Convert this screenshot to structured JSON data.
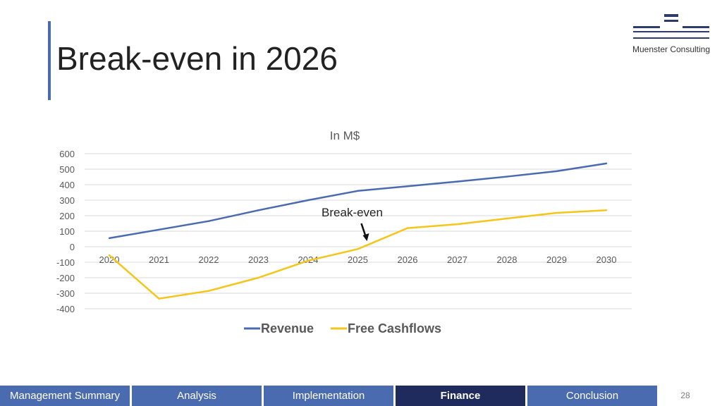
{
  "slide": {
    "title": "Break-even in 2026",
    "logo_text": "Muenster Consulting",
    "page_number": "28"
  },
  "colors": {
    "accent": "#4a6bb0",
    "revenue": "#4a6bb0",
    "cashflow": "#f5c518",
    "nav": "#4a6bb0",
    "nav_active": "#1f2b5c"
  },
  "chart_data": {
    "type": "line",
    "title": "In M$",
    "x": [
      "2020",
      "2021",
      "2022",
      "2023",
      "2024",
      "2025",
      "2026",
      "2027",
      "2028",
      "2029",
      "2030"
    ],
    "ylim": [
      -400,
      600
    ],
    "yticks": [
      600,
      500,
      400,
      300,
      200,
      100,
      0,
      -100,
      -200,
      -300,
      -400
    ],
    "grid": true,
    "legend_position": "bottom",
    "series": [
      {
        "name": "Revenue",
        "values": [
          55,
          110,
          165,
          235,
          300,
          360,
          390,
          420,
          452,
          487,
          537
        ]
      },
      {
        "name": "Free Cashflows",
        "values": [
          -55,
          -335,
          -285,
          -200,
          -90,
          -15,
          120,
          145,
          182,
          218,
          235
        ]
      }
    ],
    "annotation": {
      "text": "Break-even",
      "at": "2025"
    }
  },
  "nav": {
    "tabs": [
      {
        "label": "Management Summary",
        "active": false
      },
      {
        "label": "Analysis",
        "active": false
      },
      {
        "label": "Implementation",
        "active": false
      },
      {
        "label": "Finance",
        "active": true
      },
      {
        "label": "Conclusion",
        "active": false
      }
    ]
  }
}
